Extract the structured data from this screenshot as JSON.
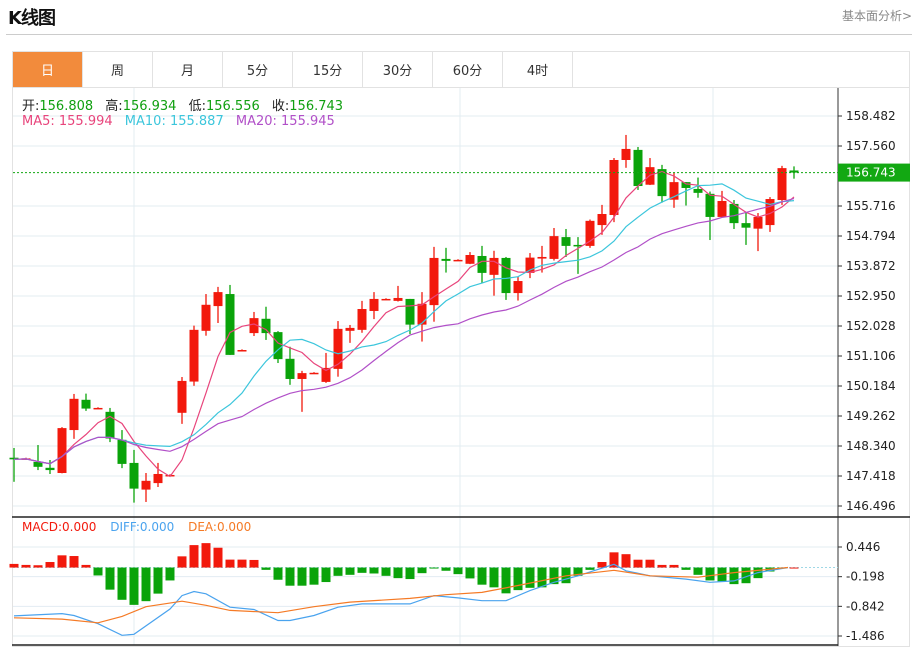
{
  "header": {
    "title": "K线图",
    "fundamental_link": "基本面分析>"
  },
  "tabs": [
    {
      "label": "日",
      "active": true
    },
    {
      "label": "周"
    },
    {
      "label": "月"
    },
    {
      "label": "5分"
    },
    {
      "label": "15分"
    },
    {
      "label": "30分"
    },
    {
      "label": "60分"
    },
    {
      "label": "4时"
    }
  ],
  "info": {
    "open_label": "开:",
    "open": "156.808",
    "high_label": "高:",
    "high": "156.934",
    "low_label": "低:",
    "low": "156.556",
    "close_label": "收:",
    "close": "156.743"
  },
  "ma_legend": {
    "ma5": "MA5: 155.994",
    "ma10": "MA10: 155.887",
    "ma20": "MA20: 155.945"
  },
  "macd_legend": {
    "macd": "MACD:0.000",
    "diff": "DIFF:0.000",
    "dea": "DEA:0.000"
  },
  "colors": {
    "up": "#f2190c",
    "down": "#0aa30a",
    "ma5": "#e8457c",
    "ma10": "#3cc6dc",
    "ma20": "#b150c8",
    "diff": "#4aa3ee",
    "dea": "#f57a25",
    "accent_tab": "#f28b3c",
    "last_price": "#12a812"
  },
  "chart_data": [
    {
      "type": "candlestick",
      "price_ticks": [
        "158.482",
        "157.560",
        "155.716",
        "154.794",
        "153.872",
        "152.950",
        "152.028",
        "151.106",
        "150.184",
        "149.262",
        "148.340",
        "147.418",
        "146.496"
      ],
      "ylim": [
        146.496,
        158.482
      ],
      "last_price": "156.743",
      "grid": true,
      "ohlc": [
        [
          147.98,
          147.93,
          148.28,
          147.24
        ],
        [
          147.96,
          147.96,
          147.98,
          147.94
        ],
        [
          147.85,
          147.7,
          148.37,
          147.6
        ],
        [
          147.67,
          147.6,
          147.91,
          147.48
        ],
        [
          147.51,
          148.89,
          148.92,
          147.5
        ],
        [
          148.83,
          149.79,
          149.94,
          148.56
        ],
        [
          149.76,
          149.49,
          149.95,
          149.42
        ],
        [
          149.51,
          149.51,
          149.53,
          149.49
        ],
        [
          149.39,
          148.57,
          149.51,
          148.46
        ],
        [
          148.53,
          147.79,
          148.83,
          147.66
        ],
        [
          147.82,
          147.03,
          148.22,
          146.6
        ],
        [
          147.0,
          147.27,
          147.51,
          146.62
        ],
        [
          147.2,
          147.48,
          147.82,
          147.08
        ],
        [
          147.45,
          147.45,
          147.47,
          147.43
        ],
        [
          149.36,
          150.34,
          150.46,
          149.02
        ],
        [
          150.32,
          151.91,
          152.04,
          150.19
        ],
        [
          151.88,
          152.68,
          153.01,
          151.73
        ],
        [
          152.64,
          153.07,
          153.23,
          152.12
        ],
        [
          153.01,
          151.14,
          153.29,
          151.14
        ],
        [
          151.29,
          151.29,
          151.31,
          151.27
        ],
        [
          151.81,
          152.27,
          152.46,
          151.72
        ],
        [
          152.25,
          151.81,
          152.62,
          151.6
        ],
        [
          151.84,
          151.01,
          151.87,
          150.89
        ],
        [
          151.02,
          150.4,
          151.39,
          150.22
        ],
        [
          150.4,
          150.58,
          150.65,
          149.39
        ],
        [
          150.59,
          150.59,
          150.61,
          150.57
        ],
        [
          150.31,
          150.74,
          151.2,
          150.28
        ],
        [
          150.71,
          151.94,
          152.18,
          150.47
        ],
        [
          151.88,
          151.97,
          152.06,
          151.51
        ],
        [
          151.91,
          152.55,
          152.8,
          151.82
        ],
        [
          152.49,
          152.86,
          153.07,
          152.24
        ],
        [
          152.86,
          152.86,
          152.88,
          152.84
        ],
        [
          152.8,
          152.89,
          153.26,
          152.78
        ],
        [
          152.86,
          152.07,
          152.86,
          151.78
        ],
        [
          152.07,
          152.71,
          153.07,
          151.55
        ],
        [
          152.67,
          154.12,
          154.46,
          152.16
        ],
        [
          154.09,
          154.03,
          154.43,
          153.67
        ],
        [
          154.06,
          154.06,
          154.08,
          154.04
        ],
        [
          153.94,
          154.21,
          154.3,
          153.93
        ],
        [
          154.18,
          153.66,
          154.49,
          153.35
        ],
        [
          153.6,
          154.12,
          154.34,
          152.96
        ],
        [
          154.12,
          153.04,
          154.15,
          152.83
        ],
        [
          153.04,
          153.41,
          153.54,
          152.81
        ],
        [
          153.66,
          154.13,
          154.27,
          153.5
        ],
        [
          154.1,
          154.15,
          154.49,
          153.67
        ],
        [
          154.09,
          154.79,
          155.04,
          154.04
        ],
        [
          154.76,
          154.49,
          155.01,
          154.15
        ],
        [
          154.52,
          154.5,
          154.76,
          153.63
        ],
        [
          154.49,
          155.26,
          155.3,
          154.43
        ],
        [
          155.13,
          155.47,
          155.75,
          154.83
        ],
        [
          155.44,
          157.13,
          157.19,
          155.22
        ],
        [
          157.13,
          157.47,
          157.9,
          156.89
        ],
        [
          157.44,
          156.33,
          157.53,
          156.21
        ],
        [
          156.37,
          156.91,
          157.19,
          156.36
        ],
        [
          156.85,
          156.02,
          156.98,
          155.82
        ],
        [
          155.91,
          156.45,
          156.73,
          155.66
        ],
        [
          156.45,
          156.27,
          156.45,
          155.73
        ],
        [
          156.24,
          156.12,
          156.59,
          155.97
        ],
        [
          156.09,
          155.38,
          156.16,
          154.67
        ],
        [
          155.38,
          155.87,
          156.18,
          155.38
        ],
        [
          155.78,
          155.19,
          155.9,
          155.01
        ],
        [
          155.19,
          155.05,
          155.53,
          154.52
        ],
        [
          155.02,
          155.38,
          155.5,
          154.33
        ],
        [
          155.13,
          155.93,
          155.99,
          154.92
        ],
        [
          155.9,
          156.88,
          156.95,
          155.75
        ],
        [
          156.808,
          156.743,
          156.934,
          156.556
        ]
      ],
      "series": [
        {
          "name": "MA5"
        },
        {
          "name": "MA10"
        },
        {
          "name": "MA20"
        }
      ]
    },
    {
      "type": "bar+line",
      "macd_ticks": [
        "0.446",
        "-0.198",
        "-0.842",
        "-1.486"
      ],
      "ylim": [
        -1.55,
        0.62
      ],
      "histogram": [
        0.079,
        0.057,
        0.05,
        0.12,
        0.265,
        0.25,
        0.057,
        -0.172,
        -0.48,
        -0.7,
        -0.81,
        -0.73,
        -0.566,
        -0.28,
        0.243,
        0.487,
        0.53,
        0.43,
        0.172,
        0.172,
        0.165,
        -0.05,
        -0.265,
        -0.394,
        -0.394,
        -0.372,
        -0.315,
        -0.18,
        -0.158,
        -0.115,
        -0.129,
        -0.18,
        -0.23,
        -0.25,
        -0.122,
        -0.01,
        -0.07,
        -0.143,
        -0.236,
        -0.372,
        -0.43,
        -0.56,
        -0.49,
        -0.44,
        -0.43,
        -0.36,
        -0.34,
        -0.18,
        -0.05,
        0.12,
        0.33,
        0.29,
        0.17,
        0.17,
        0.057,
        0.057,
        -0.05,
        -0.158,
        -0.28,
        -0.3,
        -0.36,
        -0.34,
        -0.23,
        -0.086,
        -0.014,
        0
      ],
      "diff": [
        [
          0,
          -1.05
        ],
        [
          4,
          -1.0
        ],
        [
          5,
          -1.04
        ],
        [
          7,
          -1.22
        ],
        [
          9,
          -1.47
        ],
        [
          10,
          -1.45
        ],
        [
          13,
          -0.9
        ],
        [
          14,
          -0.61
        ],
        [
          15,
          -0.52
        ],
        [
          16,
          -0.57
        ],
        [
          18,
          -0.86
        ],
        [
          20,
          -0.91
        ],
        [
          22,
          -1.15
        ],
        [
          23,
          -1.15
        ],
        [
          25,
          -1.04
        ],
        [
          27,
          -0.86
        ],
        [
          29,
          -0.79
        ],
        [
          33,
          -0.79
        ],
        [
          35,
          -0.61
        ],
        [
          37,
          -0.66
        ],
        [
          39,
          -0.72
        ],
        [
          41,
          -0.72
        ],
        [
          43,
          -0.5
        ],
        [
          45,
          -0.32
        ],
        [
          47,
          -0.18
        ],
        [
          50,
          0.07
        ],
        [
          51,
          -0.07
        ],
        [
          53,
          -0.18
        ],
        [
          56,
          -0.25
        ],
        [
          58,
          -0.32
        ],
        [
          60,
          -0.29
        ],
        [
          62,
          -0.11
        ],
        [
          64.5,
          0
        ]
      ],
      "dea": [
        [
          0,
          -1.09
        ],
        [
          4,
          -1.12
        ],
        [
          7,
          -1.2
        ],
        [
          9,
          -1.06
        ],
        [
          11,
          -0.85
        ],
        [
          14,
          -0.73
        ],
        [
          16,
          -0.82
        ],
        [
          18,
          -0.93
        ],
        [
          22,
          -0.98
        ],
        [
          25,
          -0.85
        ],
        [
          28,
          -0.75
        ],
        [
          33,
          -0.67
        ],
        [
          36,
          -0.59
        ],
        [
          39,
          -0.54
        ],
        [
          42,
          -0.39
        ],
        [
          46,
          -0.18
        ],
        [
          50,
          -0.06
        ],
        [
          53,
          -0.18
        ],
        [
          57,
          -0.21
        ],
        [
          60,
          -0.11
        ],
        [
          64.5,
          0
        ]
      ]
    }
  ]
}
